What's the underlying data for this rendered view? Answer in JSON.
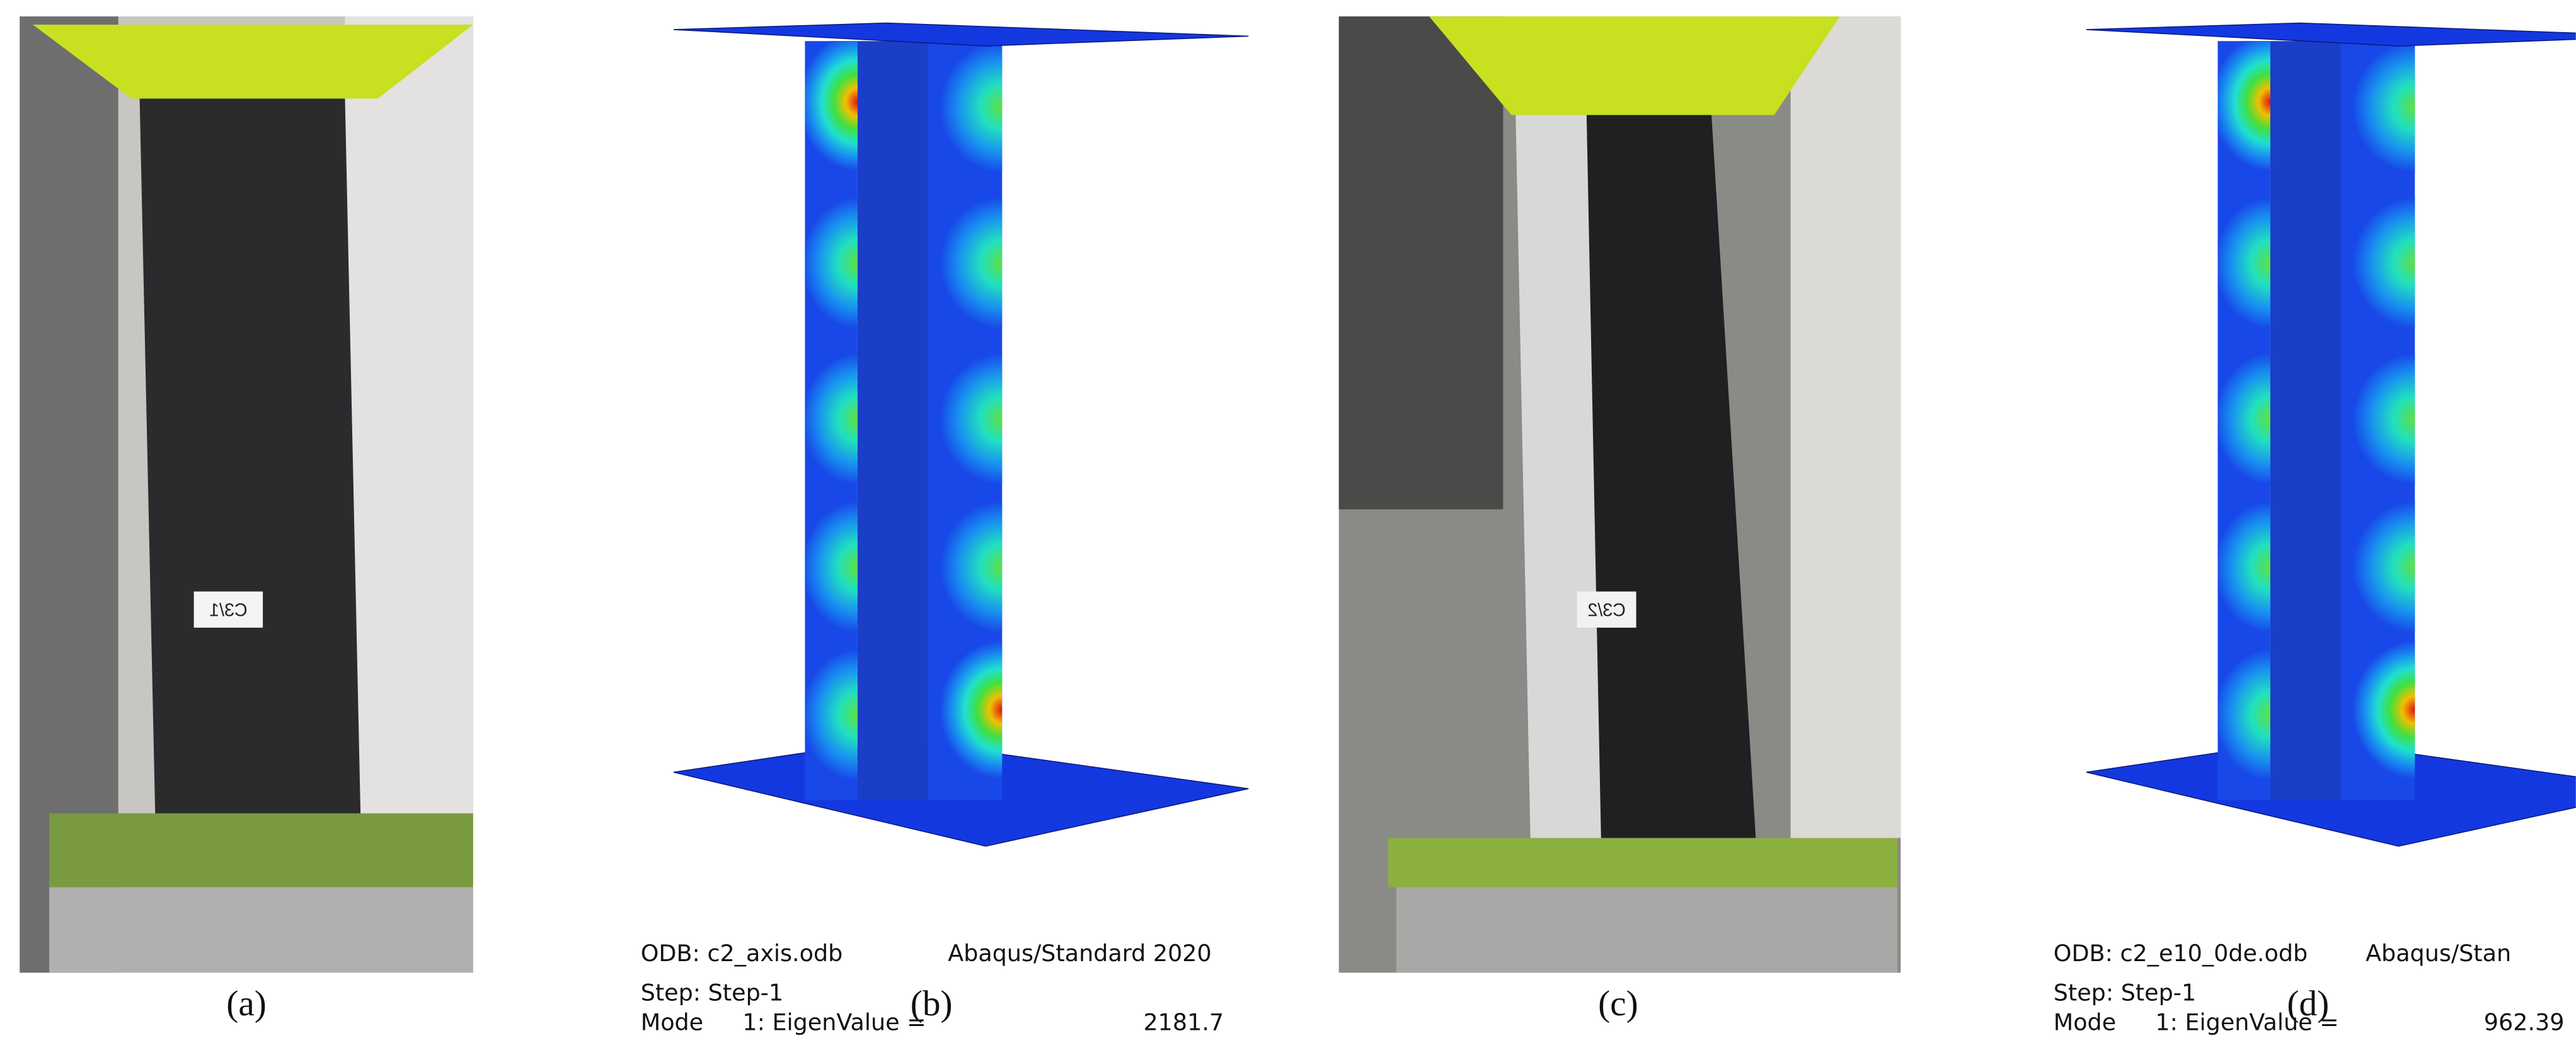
{
  "panels": [
    {
      "label": "(a)",
      "sticker": "C3/1"
    },
    {
      "label": "(b)",
      "odb": "ODB: c2_axis.odb",
      "software": "Abaqus/Standard 2020",
      "step": "Step: Step-1",
      "mode": "Mode",
      "eigen": "1: EigenValue =",
      "eigenvalue": "2181.7"
    },
    {
      "label": "(c)",
      "sticker": "C3/2"
    },
    {
      "label": "(d)",
      "odb": "ODB: c2_e10_0de.odb",
      "software": "Abaqus/Stan",
      "step": "Step: Step-1",
      "mode": "Mode",
      "eigen": "1: EigenValue =",
      "eigenvalue": "962.39"
    }
  ]
}
